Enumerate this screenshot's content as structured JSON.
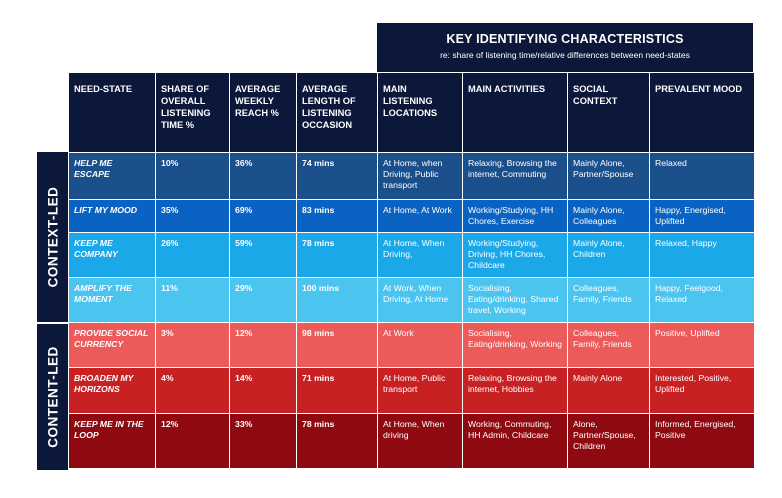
{
  "banner": {
    "title": "KEY IDENTIFYING CHARACTERISTICS",
    "subtitle": "re: share of listening time/relative differences between need-states"
  },
  "side_labels": {
    "context": "CONTEXT-LED",
    "content": "CONTENT-LED"
  },
  "headers": [
    "NEED-STATE",
    "SHARE OF OVERALL LISTENING TIME %",
    "AVERAGE WEEKLY REACH %",
    "AVERAGE LENGTH OF LISTENING OCCASION",
    "MAIN LISTENING LOCATIONS",
    "MAIN ACTIVITIES",
    "SOCIAL CONTEXT",
    "PREVALENT MOOD"
  ],
  "colors": {
    "navy": "#0c1839",
    "row_bg": [
      "#1b4f8b",
      "#0a63c2",
      "#1aa8e8",
      "#4cc4f0",
      "#ec5a5a",
      "#c82124",
      "#8e0a10"
    ],
    "row_fg": [
      "#ffffff",
      "#ffffff",
      "#ffffff",
      "#ffffff",
      "#ffffff",
      "#ffffff",
      "#ffffff"
    ]
  },
  "rows": [
    {
      "need_state": "HELP ME ESCAPE",
      "share": "10%",
      "reach": "36%",
      "length": "74 mins",
      "locations": "At Home, when Driving, Public transport",
      "activities": "Relaxing, Browsing the internet, Commuting",
      "social": "Mainly Alone, Partner/Spouse",
      "mood": "Relaxed"
    },
    {
      "need_state": "LIFT MY MOOD",
      "share": "35%",
      "reach": "69%",
      "length": "83 mins",
      "locations": "At Home, At Work",
      "activities": "Working/Studying, HH Chores, Exercise",
      "social": "Mainly Alone, Colleagues",
      "mood": "Happy, Energised, Uplifted"
    },
    {
      "need_state": "KEEP ME COMPANY",
      "share": "26%",
      "reach": "59%",
      "length": "78 mins",
      "locations": "At Home, When Driving,",
      "activities": "Working/Studying, Driving, HH Chores, Childcare",
      "social": "Mainly Alone, Children",
      "mood": "Relaxed, Happy"
    },
    {
      "need_state": "AMPLIFY THE MOMENT",
      "share": "11%",
      "reach": "29%",
      "length": "100 mins",
      "locations": "At Work, When Driving, At Home",
      "activities": "Socialising, Eating/drinking, Shared travel, Working",
      "social": "Colleagues, Family, Friends",
      "mood": "Happy, Feelgood, Relaxed"
    },
    {
      "need_state": "PROVIDE SOCIAL CURRENCY",
      "share": "3%",
      "reach": "12%",
      "length": "98 mins",
      "locations": "At Work",
      "activities": "Socialising, Eating/drinking, Working",
      "social": "Colleagues, Family, Friends",
      "mood": "Positive, Uplifted"
    },
    {
      "need_state": "BROADEN MY HORIZONS",
      "share": "4%",
      "reach": "14%",
      "length": "71 mins",
      "locations": "At Home, Public transport",
      "activities": "Relaxing, Browsing the internet, Hobbies",
      "social": "Mainly Alone",
      "mood": "Interested, Positive, Uplifted"
    },
    {
      "need_state": "KEEP ME IN THE LOOP",
      "share": "12%",
      "reach": "33%",
      "length": "78 mins",
      "locations": "At Home, When driving",
      "activities": "Working, Commuting, HH Admin, Childcare",
      "social": "Alone, Partner/Spouse, Children",
      "mood": "Informed, Energised, Positive"
    }
  ]
}
